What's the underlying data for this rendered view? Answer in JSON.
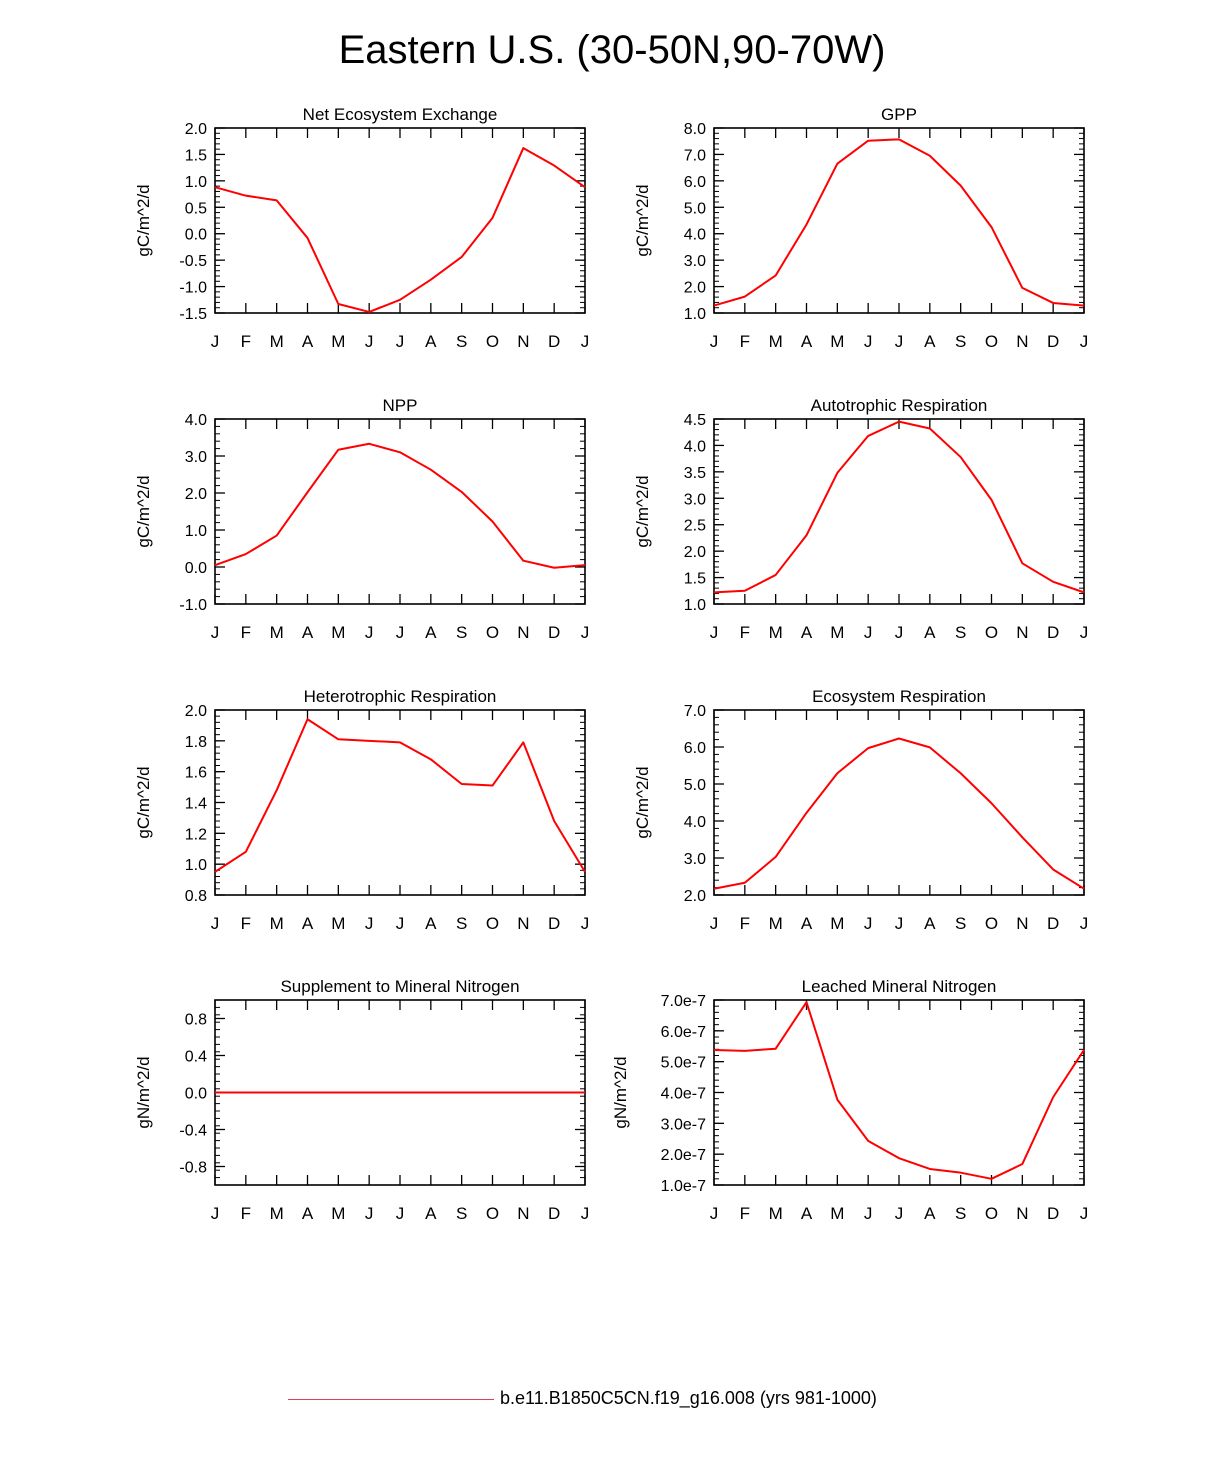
{
  "title": "Eastern U.S. (30-50N,90-70W)",
  "line_color": "#ff0000",
  "legend": {
    "label": "b.e11.B1850C5CN.f19_g16.008 (yrs 981-1000)",
    "line_color": "#e0404a"
  },
  "months": [
    "J",
    "F",
    "M",
    "A",
    "M",
    "J",
    "J",
    "A",
    "S",
    "O",
    "N",
    "D",
    "J"
  ],
  "chart_data": [
    {
      "type": "line",
      "title": "Net Ecosystem Exchange",
      "ylabel": "gC/m^2/d",
      "categories": [
        "J",
        "F",
        "M",
        "A",
        "M",
        "J",
        "J",
        "A",
        "S",
        "O",
        "N",
        "D",
        "J"
      ],
      "ylim": [
        -1.5,
        2.0
      ],
      "yticks": [
        "-1.5",
        "-1.0",
        "-0.5",
        "0.0",
        "0.5",
        "1.0",
        "1.5",
        "2.0"
      ],
      "values": [
        0.88,
        0.72,
        0.63,
        -0.08,
        -1.33,
        -1.48,
        -1.25,
        -0.87,
        -0.44,
        0.3,
        1.62,
        1.29,
        0.88
      ]
    },
    {
      "type": "line",
      "title": "GPP",
      "ylabel": "gC/m^2/d",
      "categories": [
        "J",
        "F",
        "M",
        "A",
        "M",
        "J",
        "J",
        "A",
        "S",
        "O",
        "N",
        "D",
        "J"
      ],
      "ylim": [
        1.0,
        8.0
      ],
      "yticks": [
        "1.0",
        "2.0",
        "3.0",
        "4.0",
        "5.0",
        "6.0",
        "7.0",
        "8.0"
      ],
      "values": [
        1.28,
        1.62,
        2.42,
        4.35,
        6.65,
        7.52,
        7.57,
        6.95,
        5.82,
        4.25,
        1.95,
        1.38,
        1.28
      ]
    },
    {
      "type": "line",
      "title": "NPP",
      "ylabel": "gC/m^2/d",
      "categories": [
        "J",
        "F",
        "M",
        "A",
        "M",
        "J",
        "J",
        "A",
        "S",
        "O",
        "N",
        "D",
        "J"
      ],
      "ylim": [
        -1.0,
        4.0
      ],
      "yticks": [
        "-1.0",
        "0.0",
        "1.0",
        "2.0",
        "3.0",
        "4.0"
      ],
      "values": [
        0.05,
        0.35,
        0.85,
        2.02,
        3.17,
        3.33,
        3.1,
        2.63,
        2.03,
        1.23,
        0.17,
        -0.02,
        0.05
      ]
    },
    {
      "type": "line",
      "title": "Autotrophic Respiration",
      "ylabel": "gC/m^2/d",
      "categories": [
        "J",
        "F",
        "M",
        "A",
        "M",
        "J",
        "J",
        "A",
        "S",
        "O",
        "N",
        "D",
        "J"
      ],
      "ylim": [
        1.0,
        4.5
      ],
      "yticks": [
        "1.0",
        "1.5",
        "2.0",
        "2.5",
        "3.0",
        "3.5",
        "4.0",
        "4.5"
      ],
      "values": [
        1.22,
        1.25,
        1.55,
        2.3,
        3.48,
        4.18,
        4.45,
        4.32,
        3.78,
        2.97,
        1.77,
        1.42,
        1.22
      ]
    },
    {
      "type": "line",
      "title": "Heterotrophic Respiration",
      "ylabel": "gC/m^2/d",
      "categories": [
        "J",
        "F",
        "M",
        "A",
        "M",
        "J",
        "J",
        "A",
        "S",
        "O",
        "N",
        "D",
        "J"
      ],
      "ylim": [
        0.8,
        2.0
      ],
      "yticks": [
        "0.8",
        "1.0",
        "1.2",
        "1.4",
        "1.6",
        "1.8",
        "2.0"
      ],
      "values": [
        0.95,
        1.08,
        1.48,
        1.94,
        1.81,
        1.8,
        1.79,
        1.68,
        1.52,
        1.51,
        1.79,
        1.28,
        0.95
      ]
    },
    {
      "type": "line",
      "title": "Ecosystem Respiration",
      "ylabel": "gC/m^2/d",
      "categories": [
        "J",
        "F",
        "M",
        "A",
        "M",
        "J",
        "J",
        "A",
        "S",
        "O",
        "N",
        "D",
        "J"
      ],
      "ylim": [
        2.0,
        7.0
      ],
      "yticks": [
        "2.0",
        "3.0",
        "4.0",
        "5.0",
        "6.0",
        "7.0"
      ],
      "values": [
        2.17,
        2.33,
        3.03,
        4.22,
        5.29,
        5.97,
        6.23,
        5.99,
        5.29,
        4.48,
        3.56,
        2.69,
        2.17
      ]
    },
    {
      "type": "line",
      "title": "Supplement to Mineral Nitrogen",
      "ylabel": "gN/m^2/d",
      "categories": [
        "J",
        "F",
        "M",
        "A",
        "M",
        "J",
        "J",
        "A",
        "S",
        "O",
        "N",
        "D",
        "J"
      ],
      "ylim": [
        -1.0,
        1.0
      ],
      "yticks": [
        "-0.8",
        "-0.4",
        "0.0",
        "0.4",
        "0.8"
      ],
      "values": [
        0,
        0,
        0,
        0,
        0,
        0,
        0,
        0,
        0,
        0,
        0,
        0,
        0
      ]
    },
    {
      "type": "line",
      "title": "Leached Mineral Nitrogen",
      "ylabel": "gN/m^2/d",
      "categories": [
        "J",
        "F",
        "M",
        "A",
        "M",
        "J",
        "J",
        "A",
        "S",
        "O",
        "N",
        "D",
        "J"
      ],
      "ylim": [
        1e-07,
        7e-07
      ],
      "yticks": [
        "1.0e-7",
        "2.0e-7",
        "3.0e-7",
        "4.0e-7",
        "5.0e-7",
        "6.0e-7",
        "7.0e-7"
      ],
      "values": [
        5.38e-07,
        5.35e-07,
        5.42e-07,
        6.93e-07,
        3.77e-07,
        2.43e-07,
        1.87e-07,
        1.52e-07,
        1.4e-07,
        1.2e-07,
        1.68e-07,
        3.85e-07,
        5.38e-07
      ]
    }
  ]
}
